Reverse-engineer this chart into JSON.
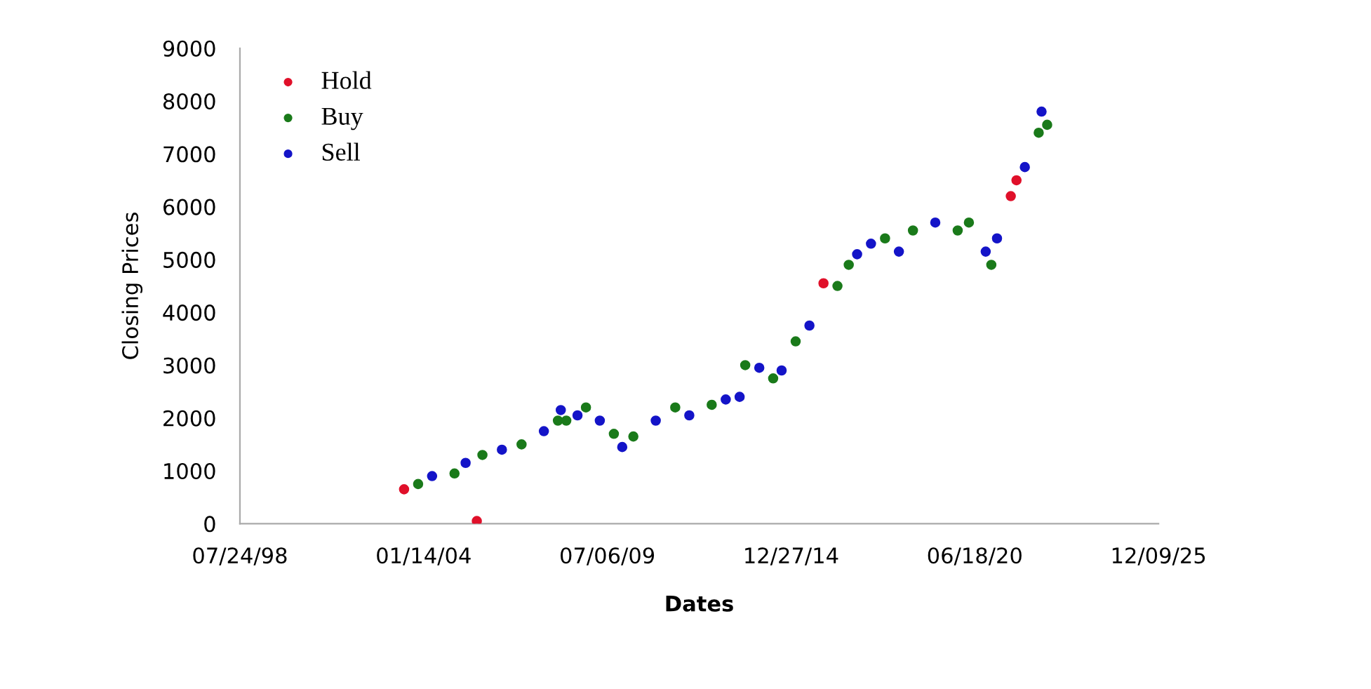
{
  "chart_data": {
    "type": "scatter",
    "xlabel": "Dates",
    "ylabel": "Closing Prices",
    "xlim": [
      "1998-07-24",
      "2025-12-09"
    ],
    "xticks": [
      {
        "value": "1998-07-24",
        "label": "07/24/98"
      },
      {
        "value": "2004-01-14",
        "label": "01/14/04"
      },
      {
        "value": "2009-07-06",
        "label": "07/06/09"
      },
      {
        "value": "2014-12-27",
        "label": "12/27/14"
      },
      {
        "value": "2020-06-18",
        "label": "06/18/20"
      },
      {
        "value": "2025-12-09",
        "label": "12/09/25"
      }
    ],
    "ylim": [
      0,
      9000
    ],
    "yticks": [
      0,
      1000,
      2000,
      3000,
      4000,
      5000,
      6000,
      7000,
      8000,
      9000
    ],
    "grid": false,
    "legend": "top left",
    "marker": "circle",
    "series": [
      {
        "name": "Hold",
        "color": "#e0102a",
        "x": [
          "2003-06",
          "2005-08",
          "2015-12",
          "2021-07",
          "2021-09"
        ],
        "values": [
          650,
          50,
          4550,
          6200,
          6500
        ]
      },
      {
        "name": "Buy",
        "color": "#1a7a1a",
        "x": [
          "2003-11",
          "2004-12",
          "2005-10",
          "2006-12",
          "2008-01",
          "2008-04",
          "2008-11",
          "2009-09",
          "2010-04",
          "2011-07",
          "2012-08",
          "2013-08",
          "2014-06",
          "2015-02",
          "2016-05",
          "2016-09",
          "2017-10",
          "2018-08",
          "2019-12",
          "2020-04",
          "2020-12",
          "2022-05",
          "2022-08"
        ],
        "values": [
          750,
          950,
          1300,
          1500,
          1950,
          1950,
          2200,
          1700,
          1650,
          2200,
          2250,
          3000,
          2750,
          3450,
          4500,
          4900,
          5400,
          5550,
          5550,
          5700,
          4900,
          7400,
          7550
        ]
      },
      {
        "name": "Sell",
        "color": "#1414c8",
        "x": [
          "2004-04",
          "2005-04",
          "2006-05",
          "2007-08",
          "2008-02",
          "2008-08",
          "2009-04",
          "2009-12",
          "2010-12",
          "2011-12",
          "2013-01",
          "2013-06",
          "2014-01",
          "2014-09",
          "2015-07",
          "2016-12",
          "2017-05",
          "2018-03",
          "2019-04",
          "2020-10",
          "2021-02",
          "2021-12",
          "2022-06"
        ],
        "values": [
          900,
          1150,
          1400,
          1750,
          2150,
          2050,
          1950,
          1450,
          1950,
          2050,
          2350,
          2400,
          2950,
          2900,
          3750,
          5100,
          5300,
          5150,
          5700,
          5150,
          5400,
          6750,
          7800
        ]
      }
    ]
  }
}
